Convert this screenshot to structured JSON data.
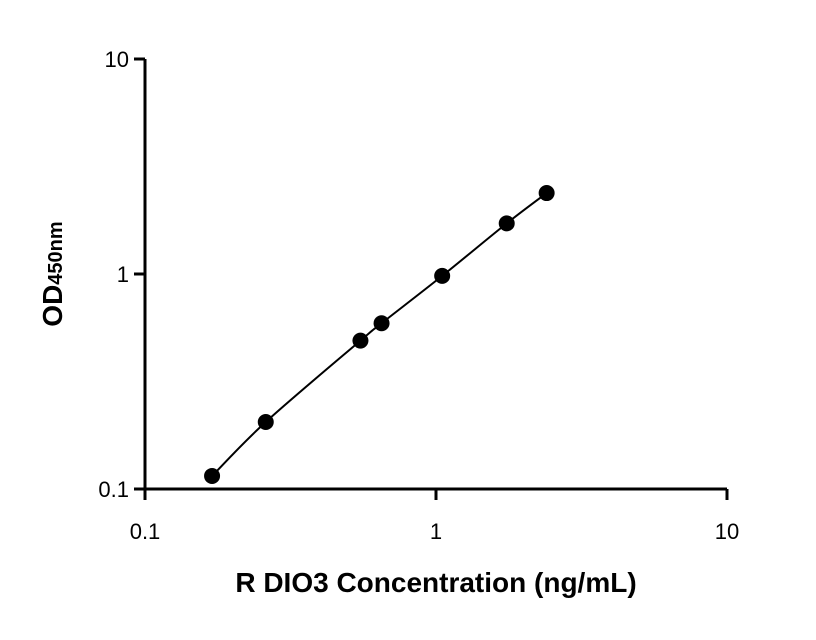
{
  "chart_data": {
    "type": "scatter",
    "title": "",
    "xlabel": "R DIO3 Concentration (ng/mL)",
    "ylabel_main": "OD",
    "ylabel_sub": "450nm",
    "x_scale": "log",
    "y_scale": "log",
    "xlim": [
      0.1,
      10
    ],
    "ylim": [
      0.1,
      10
    ],
    "x_ticks": [
      0.1,
      1,
      10
    ],
    "x_tick_labels": [
      "0.1",
      "1",
      "10"
    ],
    "y_ticks": [
      0.1,
      1,
      10
    ],
    "y_tick_labels": [
      "0.1",
      "1",
      "10"
    ],
    "grid": false,
    "series": [
      {
        "x": [
          0.17,
          0.26,
          0.55,
          0.65,
          1.05,
          1.75,
          2.4
        ],
        "y": [
          0.115,
          0.205,
          0.49,
          0.59,
          0.98,
          1.72,
          2.38
        ]
      }
    ],
    "fit_curve": true,
    "colors": {
      "marker": "#000000",
      "line": "#000000"
    }
  }
}
